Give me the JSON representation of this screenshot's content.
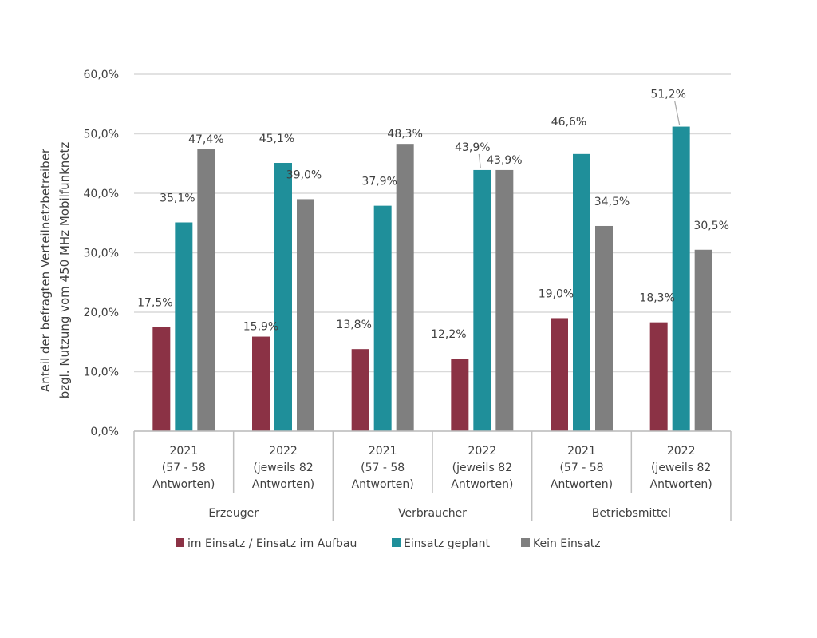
{
  "chart_data": {
    "type": "bar",
    "ylabel_lines": [
      "Anteil der befragten Verteilnetzbetreiber",
      "bzgl. Nutzung vom 450 MHz Mobilfunknetz"
    ],
    "ylim": [
      0,
      60
    ],
    "yticks": [
      0,
      10,
      20,
      30,
      40,
      50,
      60
    ],
    "ytick_labels": [
      "0,0%",
      "10,0%",
      "20,0%",
      "30,0%",
      "40,0%",
      "50,0%",
      "60,0%"
    ],
    "grid": true,
    "legend_position": "bottom",
    "groups": [
      {
        "label": "Erzeuger",
        "categories": [
          {
            "lines": [
              "2021",
              "(57 - 58",
              "Antworten)"
            ]
          },
          {
            "lines": [
              "2022",
              "(jeweils 82",
              "Antworten)"
            ]
          }
        ]
      },
      {
        "label": "Verbraucher",
        "categories": [
          {
            "lines": [
              "2021",
              "(57 - 58",
              "Antworten)"
            ]
          },
          {
            "lines": [
              "2022",
              "(jeweils 82",
              "Antworten)"
            ]
          }
        ]
      },
      {
        "label": "Betriebsmittel",
        "categories": [
          {
            "lines": [
              "2021",
              "(57 - 58",
              "Antworten)"
            ]
          },
          {
            "lines": [
              "2022",
              "(jeweils 82",
              "Antworten)"
            ]
          }
        ]
      }
    ],
    "series": [
      {
        "name": "im Einsatz / Einsatz im Aufbau",
        "color": "#8b3245",
        "values": [
          17.5,
          15.9,
          13.8,
          12.2,
          19.0,
          18.3
        ],
        "labels": [
          "17,5%",
          "15,9%",
          "13,8%",
          "12,2%",
          "19,0%",
          "18,3%"
        ]
      },
      {
        "name": "Einsatz geplant",
        "color": "#1f8f9a",
        "values": [
          35.1,
          45.1,
          37.9,
          43.9,
          46.6,
          51.2
        ],
        "labels": [
          "35,1%",
          "45,1%",
          "37,9%",
          "43,9%",
          "46,6%",
          "51,2%"
        ]
      },
      {
        "name": "Kein Einsatz",
        "color": "#7f7f7f",
        "values": [
          47.4,
          39.0,
          48.3,
          43.9,
          34.5,
          30.5
        ],
        "labels": [
          "47,4%",
          "39,0%",
          "48,3%",
          "43,9%",
          "34,5%",
          "30,5%"
        ]
      }
    ]
  }
}
